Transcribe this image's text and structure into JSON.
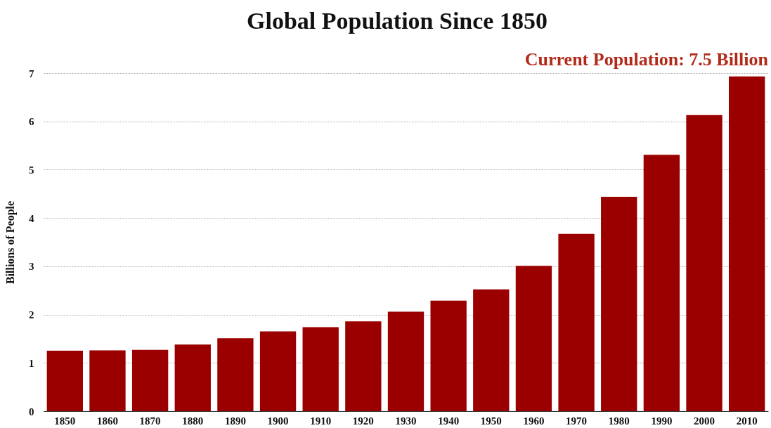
{
  "chart_data": {
    "type": "bar",
    "title": "Global Population Since 1850",
    "ylabel": "Billions of People",
    "annotations": [
      "Current Population: 7.5 Billion"
    ],
    "categories": [
      "1850",
      "1860",
      "1870",
      "1880",
      "1890",
      "1900",
      "1910",
      "1920",
      "1930",
      "1940",
      "1950",
      "1960",
      "1970",
      "1980",
      "1990",
      "2000",
      "2010"
    ],
    "values": [
      1.25,
      1.26,
      1.27,
      1.38,
      1.51,
      1.65,
      1.74,
      1.86,
      2.06,
      2.29,
      2.52,
      3.01,
      3.67,
      4.44,
      5.31,
      6.13,
      6.93
    ],
    "color": "#9b0000",
    "ylim": [
      0,
      7
    ],
    "yticks": [
      0,
      1,
      2,
      3,
      4,
      5,
      6,
      7
    ],
    "grid": "y"
  }
}
